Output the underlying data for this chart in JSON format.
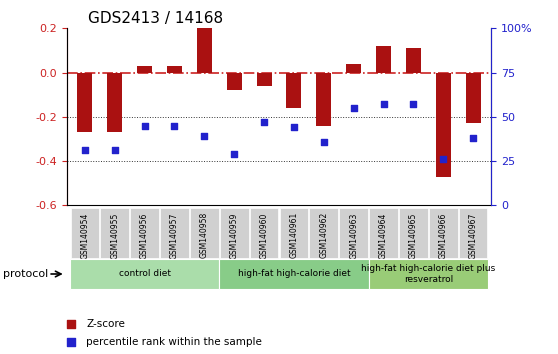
{
  "title": "GDS2413 / 14168",
  "samples": [
    "GSM140954",
    "GSM140955",
    "GSM140956",
    "GSM140957",
    "GSM140958",
    "GSM140959",
    "GSM140960",
    "GSM140961",
    "GSM140962",
    "GSM140963",
    "GSM140964",
    "GSM140965",
    "GSM140966",
    "GSM140967"
  ],
  "z_scores": [
    -0.27,
    -0.27,
    0.03,
    0.03,
    0.2,
    -0.08,
    -0.06,
    -0.16,
    -0.24,
    0.04,
    0.12,
    0.11,
    -0.47,
    -0.23
  ],
  "percentile_ranks": [
    31,
    31,
    45,
    45,
    39,
    29,
    47,
    44,
    36,
    55,
    57,
    57,
    26,
    38
  ],
  "ylim_left": [
    -0.6,
    0.2
  ],
  "ylim_right": [
    0,
    100
  ],
  "yticks_left": [
    -0.6,
    -0.4,
    -0.2,
    0.0,
    0.2
  ],
  "yticks_right": [
    0,
    25,
    50,
    75,
    100
  ],
  "bar_color": "#aa1111",
  "dot_color": "#2222cc",
  "hline_color": "#cc2222",
  "grid_color": "#333333",
  "protocol_groups": [
    {
      "label": "control diet",
      "start": 0,
      "end": 4,
      "color": "#aaddaa"
    },
    {
      "label": "high-fat high-calorie diet",
      "start": 5,
      "end": 9,
      "color": "#88cc88"
    },
    {
      "label": "high-fat high-calorie diet plus\nresveratrol",
      "start": 10,
      "end": 13,
      "color": "#99cc77"
    }
  ],
  "protocol_label": "protocol"
}
